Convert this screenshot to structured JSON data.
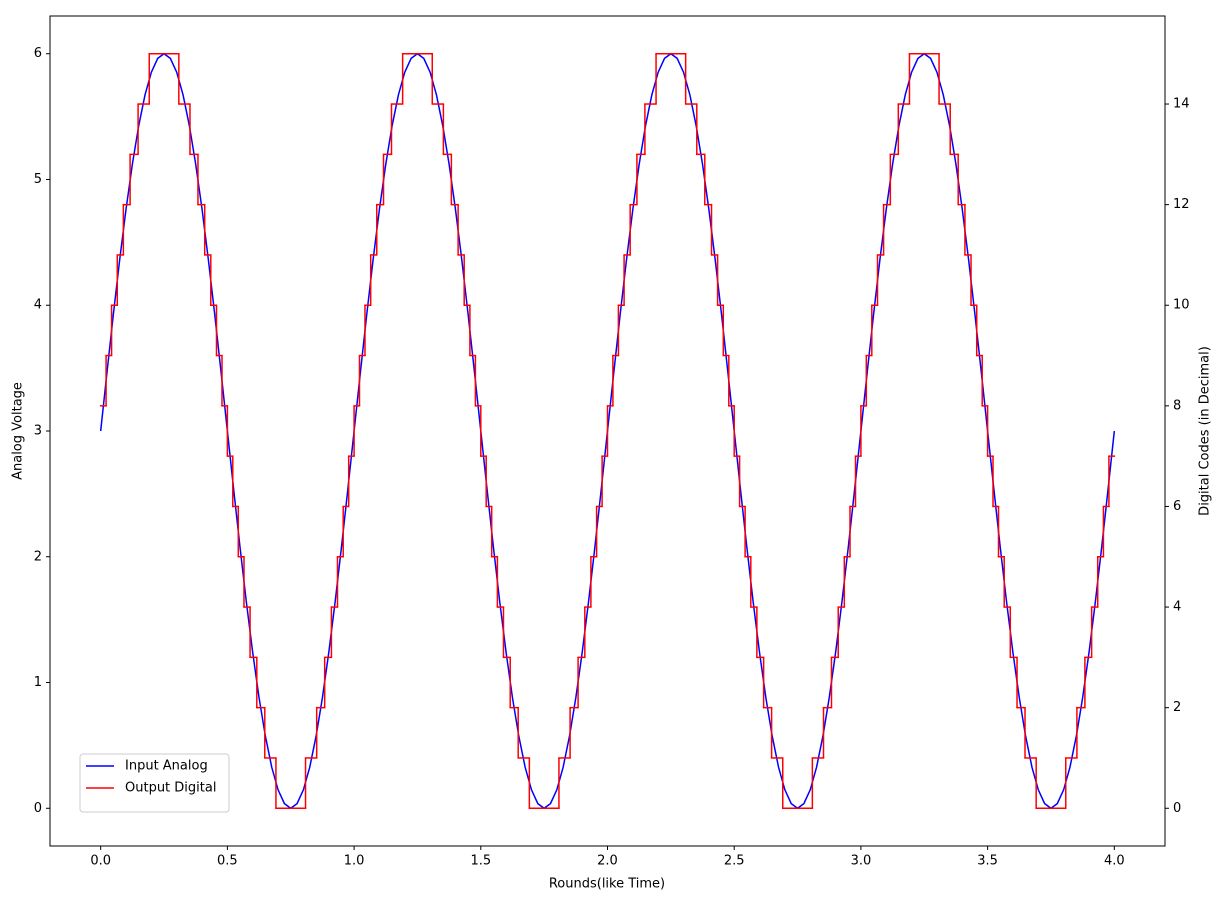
{
  "chart_data": {
    "type": "line",
    "xlabel": "Rounds(like Time)",
    "ylabel": "Analog Voltage",
    "y2label": "Digital Codes (in Decimal)",
    "xlim": [
      -0.2,
      4.2
    ],
    "ylim": [
      -0.3,
      6.3
    ],
    "y2lim": [
      -0.75,
      15.75
    ],
    "xticks": [
      {
        "value": 0,
        "label": "0.0"
      },
      0.5,
      {
        "value": 1,
        "label": "1.0"
      },
      1.5,
      {
        "value": 2,
        "label": "2.0"
      },
      2.5,
      {
        "value": 3,
        "label": "3.0"
      },
      3.5,
      {
        "value": 4,
        "label": "4.0"
      }
    ],
    "yticks": [
      0,
      1,
      2,
      3,
      4,
      5,
      6
    ],
    "y2ticks": [
      0,
      2,
      4,
      6,
      8,
      10,
      12,
      14
    ],
    "legend": "lower left",
    "series": [
      {
        "name": "Input Analog",
        "color": "#0000ff",
        "x": [
          0,
          0.025,
          0.05,
          0.075,
          0.1,
          0.125,
          0.15,
          0.175,
          0.2,
          0.225,
          0.25,
          0.275,
          0.3,
          0.325,
          0.35,
          0.375,
          0.4,
          0.425,
          0.45,
          0.475,
          0.5,
          0.525,
          0.55,
          0.575,
          0.6,
          0.625,
          0.65,
          0.675,
          0.7,
          0.725,
          0.75,
          0.775,
          0.8,
          0.825,
          0.85,
          0.875,
          0.9,
          0.925,
          0.95,
          0.975,
          1,
          1.025,
          1.05,
          1.075,
          1.1,
          1.125,
          1.15,
          1.175,
          1.2,
          1.225,
          1.25,
          1.275,
          1.3,
          1.325,
          1.35,
          1.375,
          1.4,
          1.425,
          1.45,
          1.475,
          1.5,
          1.525,
          1.55,
          1.575,
          1.6,
          1.625,
          1.65,
          1.675,
          1.7,
          1.725,
          1.75,
          1.775,
          1.8,
          1.825,
          1.85,
          1.875,
          1.9,
          1.925,
          1.95,
          1.975,
          2,
          2.025,
          2.05,
          2.075,
          2.1,
          2.125,
          2.15,
          2.175,
          2.2,
          2.225,
          2.25,
          2.275,
          2.3,
          2.325,
          2.35,
          2.375,
          2.4,
          2.425,
          2.45,
          2.475,
          2.5,
          2.525,
          2.55,
          2.575,
          2.6,
          2.625,
          2.65,
          2.675,
          2.7,
          2.725,
          2.75,
          2.775,
          2.8,
          2.825,
          2.85,
          2.875,
          2.9,
          2.925,
          2.95,
          2.975,
          3,
          3.025,
          3.05,
          3.075,
          3.1,
          3.125,
          3.15,
          3.175,
          3.2,
          3.225,
          3.25,
          3.275,
          3.3,
          3.325,
          3.35,
          3.375,
          3.4,
          3.425,
          3.45,
          3.475,
          3.5,
          3.525,
          3.55,
          3.575,
          3.6,
          3.625,
          3.65,
          3.675,
          3.7,
          3.725,
          3.75,
          3.775,
          3.8,
          3.825,
          3.85,
          3.875,
          3.9,
          3.925,
          3.95,
          3.975,
          4
        ],
        "values": [
          3,
          3.469,
          3.927,
          4.362,
          4.763,
          5.121,
          5.427,
          5.673,
          5.853,
          5.963,
          6,
          5.963,
          5.853,
          5.673,
          5.427,
          5.121,
          4.763,
          4.362,
          3.927,
          3.469,
          3,
          2.531,
          2.073,
          1.638,
          1.237,
          0.879,
          0.573,
          0.327,
          0.147,
          0.037,
          0,
          0.037,
          0.147,
          0.327,
          0.573,
          0.879,
          1.237,
          1.638,
          2.073,
          2.531,
          3,
          3.469,
          3.927,
          4.362,
          4.763,
          5.121,
          5.427,
          5.673,
          5.853,
          5.963,
          6,
          5.963,
          5.853,
          5.673,
          5.427,
          5.121,
          4.763,
          4.362,
          3.927,
          3.469,
          3,
          2.531,
          2.073,
          1.638,
          1.237,
          0.879,
          0.573,
          0.327,
          0.147,
          0.037,
          0,
          0.037,
          0.147,
          0.327,
          0.573,
          0.879,
          1.237,
          1.638,
          2.073,
          2.531,
          3,
          3.469,
          3.927,
          4.362,
          4.763,
          5.121,
          5.427,
          5.673,
          5.853,
          5.963,
          6,
          5.963,
          5.853,
          5.673,
          5.427,
          5.121,
          4.763,
          4.362,
          3.927,
          3.469,
          3,
          2.531,
          2.073,
          1.638,
          1.237,
          0.879,
          0.573,
          0.327,
          0.147,
          0.037,
          0,
          0.037,
          0.147,
          0.327,
          0.573,
          0.879,
          1.237,
          1.638,
          2.073,
          2.531,
          3,
          3.469,
          3.927,
          4.362,
          4.763,
          5.121,
          5.427,
          5.673,
          5.853,
          5.963,
          6,
          5.963,
          5.853,
          5.673,
          5.427,
          5.121,
          4.763,
          4.362,
          3.927,
          3.469,
          3,
          2.531,
          2.073,
          1.638,
          1.237,
          0.879,
          0.573,
          0.327,
          0.147,
          0.037,
          0,
          0.037,
          0.147,
          0.327,
          0.573,
          0.879,
          1.237,
          1.638,
          2.073,
          2.531,
          3
        ]
      },
      {
        "name": "Output Digital",
        "color": "#ff0000",
        "axis": "y2",
        "drawstyle": "steps-post",
        "x": [
          0,
          0.0213,
          0.043,
          0.0655,
          0.0895,
          0.1161,
          0.1476,
          0.1916,
          0.3084,
          0.3524,
          0.3839,
          0.4105,
          0.4345,
          0.457,
          0.4787,
          0.5,
          0.5213,
          0.543,
          0.5655,
          0.5895,
          0.6161,
          0.6476,
          0.6916,
          0.8084,
          0.8524,
          0.8839,
          0.9105,
          0.9345,
          0.957,
          0.9787,
          1,
          1.0213,
          1.043,
          1.0655,
          1.0895,
          1.1161,
          1.1476,
          1.1916,
          1.3084,
          1.3524,
          1.3839,
          1.4105,
          1.4345,
          1.457,
          1.4787,
          1.5,
          1.5213,
          1.543,
          1.5655,
          1.5895,
          1.6161,
          1.6476,
          1.6916,
          1.8084,
          1.8524,
          1.8839,
          1.9105,
          1.9345,
          1.957,
          1.9787,
          2,
          2.0213,
          2.043,
          2.0655,
          2.0895,
          2.1161,
          2.1476,
          2.1916,
          2.3084,
          2.3524,
          2.3839,
          2.4105,
          2.4345,
          2.457,
          2.4787,
          2.5,
          2.5213,
          2.543,
          2.5655,
          2.5895,
          2.6161,
          2.6476,
          2.6916,
          2.8084,
          2.8524,
          2.8839,
          2.9105,
          2.9345,
          2.957,
          2.9787,
          3,
          3.0213,
          3.043,
          3.0655,
          3.0895,
          3.1161,
          3.1476,
          3.1916,
          3.3084,
          3.3524,
          3.3839,
          3.4105,
          3.4345,
          3.457,
          3.4787,
          3.5,
          3.5213,
          3.543,
          3.5655,
          3.5895,
          3.6161,
          3.6476,
          3.6916,
          3.8084,
          3.8524,
          3.8839,
          3.9105,
          3.9345,
          3.957,
          3.9787,
          4
        ],
        "values": [
          8,
          9,
          10,
          11,
          12,
          13,
          14,
          15,
          14,
          13,
          12,
          11,
          10,
          9,
          8,
          7,
          6,
          5,
          4,
          3,
          2,
          1,
          0,
          1,
          2,
          3,
          4,
          5,
          6,
          7,
          8,
          9,
          10,
          11,
          12,
          13,
          14,
          15,
          14,
          13,
          12,
          11,
          10,
          9,
          8,
          7,
          6,
          5,
          4,
          3,
          2,
          1,
          0,
          1,
          2,
          3,
          4,
          5,
          6,
          7,
          8,
          9,
          10,
          11,
          12,
          13,
          14,
          15,
          14,
          13,
          12,
          11,
          10,
          9,
          8,
          7,
          6,
          5,
          4,
          3,
          2,
          1,
          0,
          1,
          2,
          3,
          4,
          5,
          6,
          7,
          8,
          9,
          10,
          11,
          12,
          13,
          14,
          15,
          14,
          13,
          12,
          11,
          10,
          9,
          8,
          7,
          6,
          5,
          4,
          3,
          2,
          1,
          0,
          1,
          2,
          3,
          4,
          5,
          6,
          7,
          7
        ]
      }
    ]
  }
}
